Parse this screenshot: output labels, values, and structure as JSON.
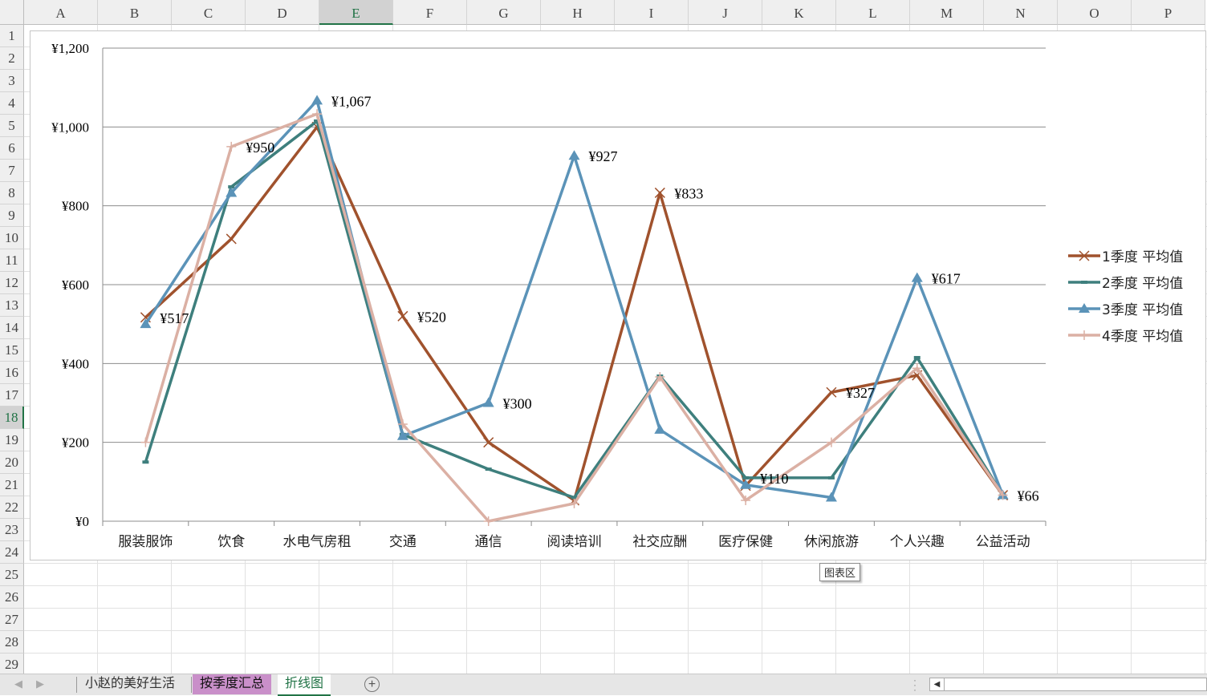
{
  "sheet": {
    "columns": [
      "A",
      "B",
      "C",
      "D",
      "E",
      "F",
      "G",
      "H",
      "I",
      "J",
      "K",
      "L",
      "M",
      "N",
      "O",
      "P"
    ],
    "selected_column": "E",
    "rows": [
      "1",
      "2",
      "3",
      "4",
      "5",
      "6",
      "7",
      "8",
      "9",
      "10",
      "11",
      "12",
      "13",
      "14",
      "15",
      "16",
      "17",
      "18",
      "19",
      "20",
      "21",
      "22",
      "23",
      "24",
      "25",
      "26",
      "27",
      "28",
      "29"
    ],
    "selected_row": "18"
  },
  "tooltip": "图表区",
  "tabs": [
    {
      "label": "小赵的美好生活",
      "state": "normal"
    },
    {
      "label": "按季度汇总",
      "state": "colored",
      "color": "#c98fc9"
    },
    {
      "label": "折线图",
      "state": "active"
    }
  ],
  "icons": {
    "add_sheet": "plus-circle-icon",
    "prev": "chevron-left-icon",
    "next": "chevron-right-icon",
    "scroll_left": "triangle-left-icon"
  },
  "chart_data": {
    "type": "line",
    "categories": [
      "服装服饰",
      "饮食",
      "水电气房租",
      "交通",
      "通信",
      "阅读培训",
      "社交应酬",
      "医疗保健",
      "休闲旅游",
      "个人兴趣",
      "公益活动"
    ],
    "ylim": [
      0,
      1200
    ],
    "yticks": [
      0,
      200,
      400,
      600,
      800,
      1000,
      1200
    ],
    "ytick_labels": [
      "¥0",
      "¥200",
      "¥400",
      "¥600",
      "¥800",
      "¥1,000",
      "¥1,200"
    ],
    "grid": true,
    "legend_placement": "right",
    "series": [
      {
        "name": "1季度 平均值",
        "color": "#a0522d",
        "marker": "x",
        "values": [
          517,
          716,
          1000,
          520,
          200,
          53,
          833,
          90,
          327,
          370,
          66
        ]
      },
      {
        "name": "2季度 平均值",
        "color": "#3e7f7d",
        "marker": "dash",
        "values": [
          150,
          848,
          1015,
          220,
          132,
          60,
          368,
          110,
          110,
          415,
          66
        ]
      },
      {
        "name": "3季度 平均值",
        "color": "#5b93b8",
        "marker": "triangle",
        "values": [
          500,
          833,
          1067,
          216,
          300,
          927,
          232,
          92,
          60,
          617,
          66
        ]
      },
      {
        "name": "4季度 平均值",
        "color": "#dbb0a4",
        "marker": "plus",
        "values": [
          200,
          950,
          1033,
          246,
          0,
          45,
          366,
          53,
          200,
          388,
          66
        ]
      }
    ],
    "data_labels": [
      {
        "category": 0,
        "series": 0,
        "text": "¥517"
      },
      {
        "category": 1,
        "series": 3,
        "text": "¥950"
      },
      {
        "category": 2,
        "series": 2,
        "text": "¥1,067"
      },
      {
        "category": 3,
        "series": 0,
        "text": "¥520"
      },
      {
        "category": 4,
        "series": 2,
        "text": "¥300"
      },
      {
        "category": 5,
        "series": 2,
        "text": "¥927"
      },
      {
        "category": 6,
        "series": 0,
        "text": "¥833"
      },
      {
        "category": 7,
        "series": 1,
        "text": "¥110"
      },
      {
        "category": 8,
        "series": 0,
        "text": "¥327"
      },
      {
        "category": 9,
        "series": 2,
        "text": "¥617"
      },
      {
        "category": 10,
        "series": 2,
        "text": "¥66"
      }
    ]
  }
}
